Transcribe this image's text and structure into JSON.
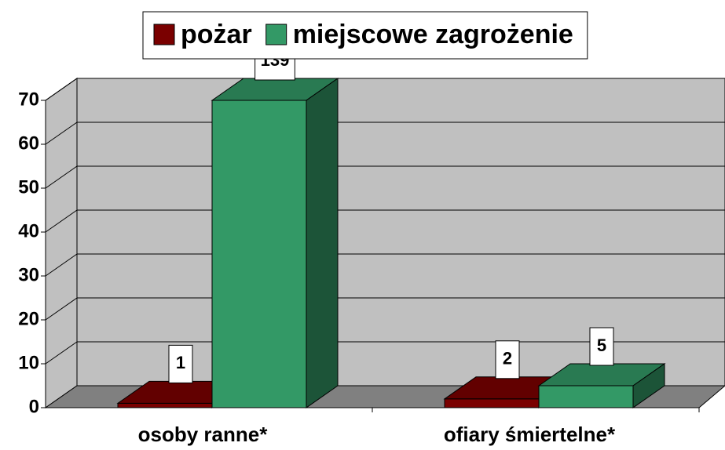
{
  "chart_data": {
    "type": "bar3d",
    "categories": [
      "osoby ranne*",
      "ofiary śmiertelne*"
    ],
    "series": [
      {
        "name": "pożar",
        "color": "#7a0000",
        "values": [
          1,
          2
        ]
      },
      {
        "name": "miejscowe zagrożenie",
        "color": "#339966",
        "values": [
          139,
          5
        ]
      }
    ],
    "ylim": [
      0,
      70
    ],
    "yticks": [
      0,
      10,
      20,
      30,
      40,
      50,
      60,
      70
    ],
    "grid": true,
    "legend": "top"
  }
}
